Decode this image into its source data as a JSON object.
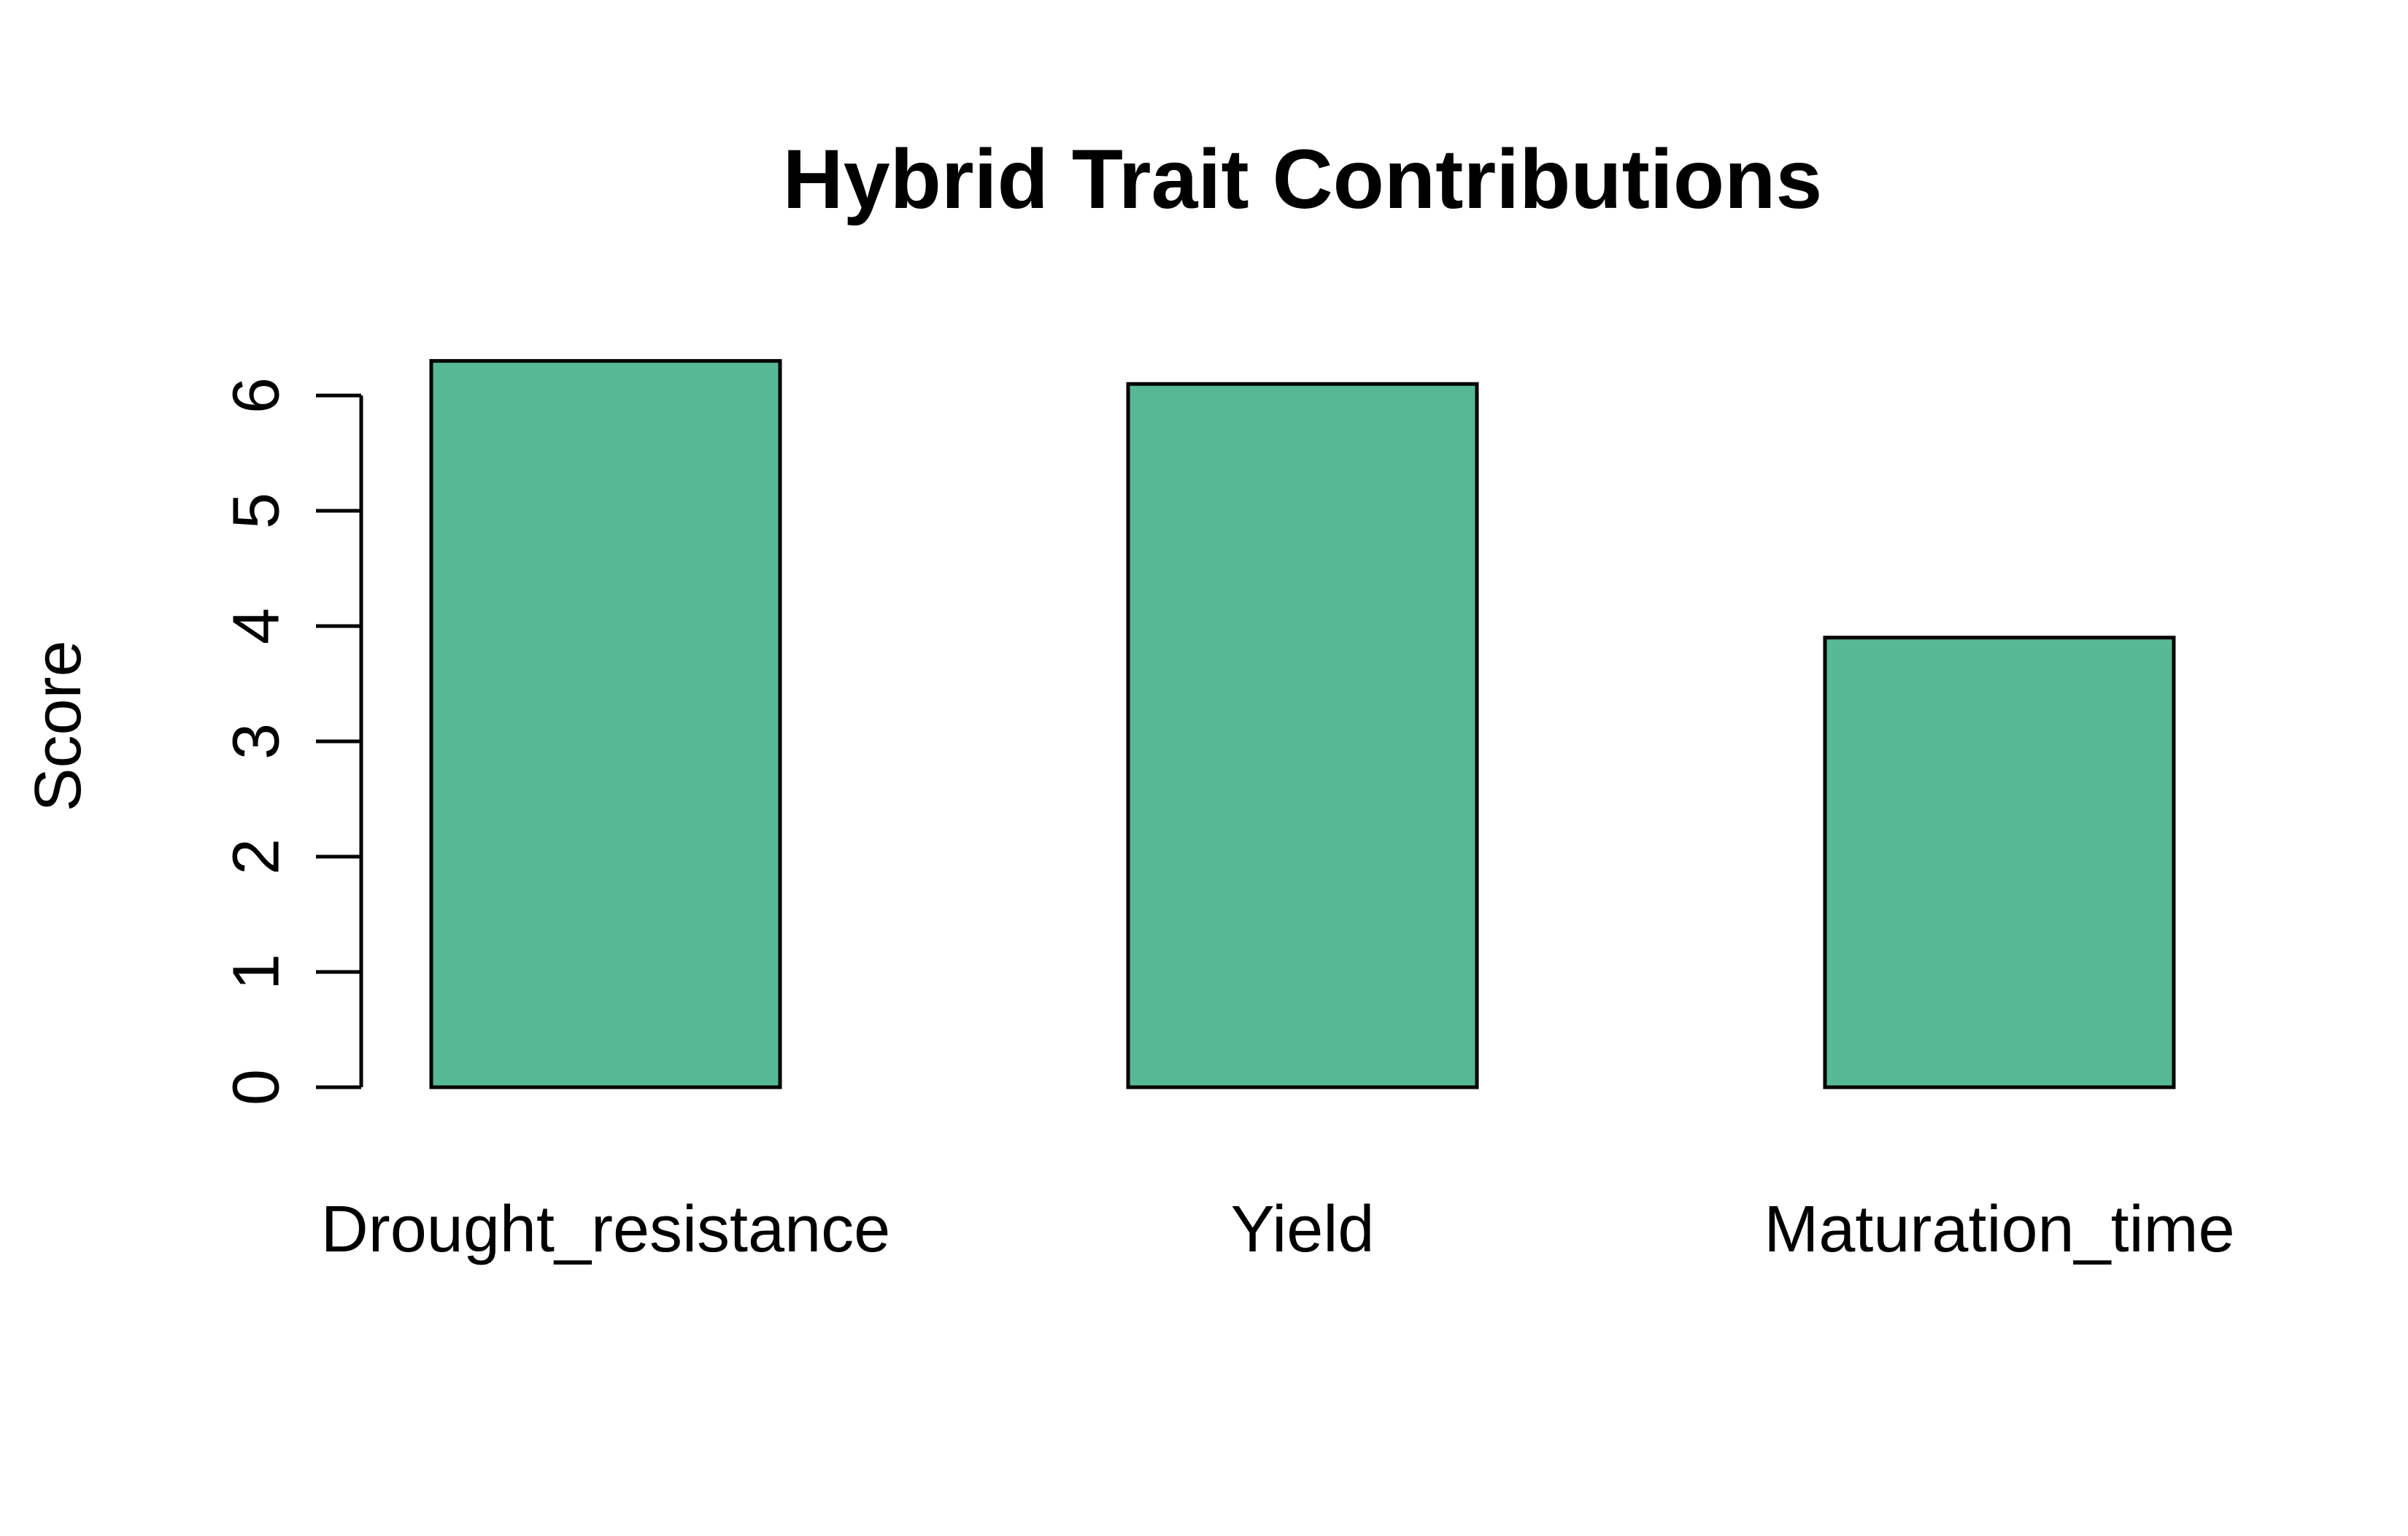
{
  "chart_data": {
    "type": "bar",
    "title": "Hybrid Trait Contributions",
    "xlabel": "",
    "ylabel": "Score",
    "categories": [
      "Drought_resistance",
      "Yield",
      "Maturation_time"
    ],
    "values": [
      6.3,
      6.1,
      3.9
    ],
    "ylim": [
      0,
      6.3
    ],
    "yticks": [
      0,
      1,
      2,
      3,
      4,
      5,
      6
    ],
    "grid": false,
    "legend": "none",
    "bar_color": "#57B994",
    "bar_border_color": "#000000"
  }
}
